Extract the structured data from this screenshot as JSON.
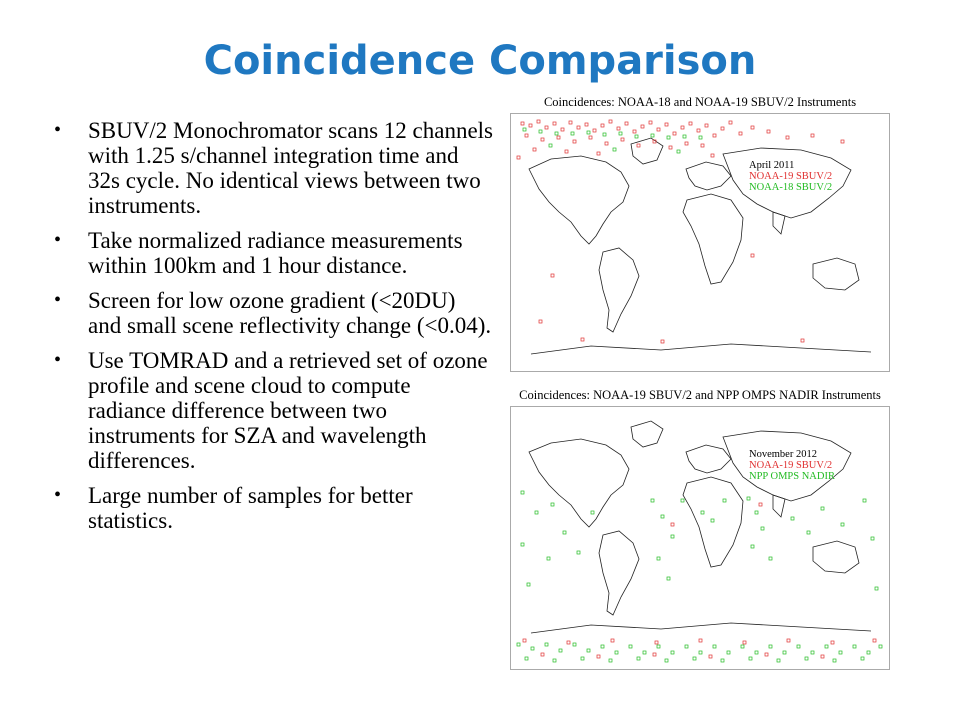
{
  "slide": {
    "title": "Coincidence Comparison"
  },
  "bullets": [
    "SBUV/2 Monochromator scans 12 channels with 1.25 s/channel integration time and 32s cycle. No identical views between two instruments.",
    "Take normalized radiance measurements within 100km and 1 hour distance.",
    "Screen for low ozone gradient (<20DU) and small scene reflectivity change (<0.04).",
    "Use TOMRAD and a retrieved set of ozone profile and scene cloud to compute radiance difference between two instruments for SZA and wavelength differences.",
    "Large number of samples for better statistics."
  ],
  "bullet_symbol": "•",
  "maps": [
    {
      "title": "Coincidences: NOAA-18 and NOAA-19 SBUV/2 Instruments",
      "legend_date": "April 2011",
      "legend_red": "NOAA-19 SBUV/2",
      "legend_green": "NOAA-18 SBUV/2"
    },
    {
      "title": "Coincidences: NOAA-19 SBUV/2 and NPP OMPS NADIR Instruments",
      "legend_date": "November 2012",
      "legend_red": "NOAA-19 SBUV/2",
      "legend_green": "NPP OMPS NADIR"
    }
  ],
  "colors": {
    "title": "#1f78c1",
    "red_marker": "#e03030",
    "green_marker": "#22bb22",
    "coastline": "#222222"
  }
}
